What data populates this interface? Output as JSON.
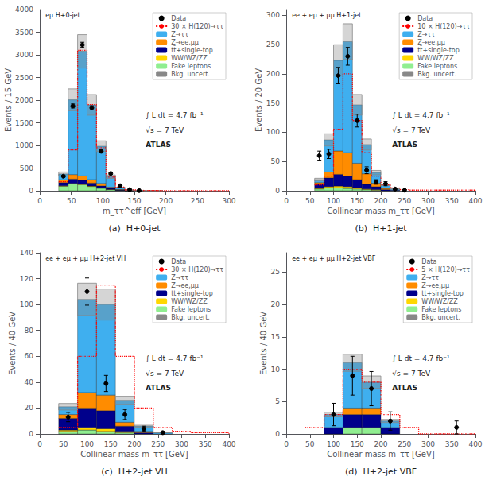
{
  "chart_data": [
    {
      "type": "bar",
      "stacked": true,
      "grid": false,
      "legend": "upper right",
      "title": "(a)  H+0-jet",
      "panel_label": "eμ H+0-jet",
      "annotations": [
        "∫ L dt = 4.7 fb⁻¹",
        "√s = 7 TeV",
        "ATLAS"
      ],
      "x_label": "m_ττ^eff [GeV]",
      "y_label": "Events / 15 GeV",
      "xlim": [
        0,
        300
      ],
      "ylim": [
        0,
        4000
      ],
      "xticks": [
        0,
        50,
        100,
        150,
        200,
        250,
        300
      ],
      "yticks": [
        0,
        500,
        1000,
        1500,
        2000,
        2500,
        3000,
        3500,
        4000
      ],
      "bins": [
        30,
        45,
        60,
        75,
        90,
        105,
        120,
        135,
        150,
        165,
        195,
        300
      ],
      "series": [
        {
          "name": "Data",
          "type": "errorbar",
          "color": "#000000",
          "marker": "circle",
          "x": [
            37.5,
            52.5,
            67.5,
            82.5,
            97.5,
            112.5,
            127.5,
            142.5,
            157.5
          ],
          "values": [
            320,
            1870,
            3220,
            1830,
            870,
            380,
            110,
            25,
            5
          ],
          "errors": [
            17.8885,
            43.2435,
            56.745,
            42.7785,
            29.4958,
            19.4936,
            10.4881,
            5,
            2.2361
          ]
        },
        {
          "name": "30 × H(120)→ττ",
          "type": "step",
          "color": "#FF0000",
          "line_style": "dotted",
          "values": [
            200,
            900,
            3100,
            1900,
            950,
            300,
            80,
            20,
            8,
            3,
            1
          ]
        },
        {
          "name": "Z→ττ",
          "type": "bar",
          "color": "#3FAFEF",
          "values": [
            130,
            1650,
            2750,
            1650,
            820,
            230,
            40,
            8,
            2,
            1,
            0
          ]
        },
        {
          "name": "Z→ee,μμ",
          "type": "bar",
          "color": "#FF8C00",
          "values": [
            60,
            100,
            95,
            75,
            55,
            25,
            8,
            2,
            0,
            0,
            0
          ]
        },
        {
          "name": "tt̄+single-top",
          "type": "bar",
          "color": "#00008B",
          "values": [
            70,
            95,
            85,
            65,
            45,
            25,
            12,
            4,
            1,
            0,
            0
          ]
        },
        {
          "name": "WW/WZ/ZZ",
          "type": "bar",
          "color": "#FFD700",
          "values": [
            10,
            12,
            12,
            10,
            8,
            5,
            2,
            1,
            0,
            0,
            0
          ]
        },
        {
          "name": "Fake leptons",
          "type": "bar",
          "color": "#90EE90",
          "values": [
            100,
            150,
            135,
            95,
            55,
            25,
            8,
            2,
            0,
            0,
            0
          ]
        },
        {
          "name": "Bkg. uncert.",
          "type": "band",
          "color": "#888888",
          "low": [
            325.6,
            1766.16,
            2707.76,
            1667.6,
            865.04,
            272.8,
            61.6,
            14.96,
            2.64,
            0.88,
            null
          ],
          "high": [
            414.4,
            2247.84,
            3446.24,
            2122.4,
            1100.96,
            347.2,
            78.4,
            19.04,
            3.36,
            1.12,
            null
          ]
        }
      ]
    },
    {
      "type": "bar",
      "stacked": true,
      "grid": false,
      "legend": "upper right",
      "title": "(b)  H+1-jet",
      "panel_label": "ee + eμ + μμ H+1-jet",
      "annotations": [
        "∫ L dt = 4.7 fb⁻¹",
        "√s = 7 TeV",
        "ATLAS"
      ],
      "x_label": "Collinear mass m_ττ [GeV]",
      "y_label": "Events / 20 GeV",
      "xlim": [
        0,
        400
      ],
      "ylim": [
        0,
        310
      ],
      "xticks": [
        0,
        50,
        100,
        150,
        200,
        250,
        300,
        350,
        400
      ],
      "yticks": [
        0,
        50,
        100,
        150,
        200,
        250,
        300
      ],
      "bins": [
        60,
        80,
        100,
        120,
        140,
        160,
        180,
        200,
        220,
        240,
        260,
        400
      ],
      "series": [
        {
          "name": "Data",
          "type": "errorbar",
          "color": "#000000",
          "marker": "circle",
          "x": [
            70,
            90,
            110,
            130,
            150,
            170,
            190,
            210,
            230,
            250
          ],
          "values": [
            60,
            63,
            197,
            230,
            120,
            35,
            15,
            12,
            3,
            1
          ],
          "errors": [
            7.746,
            7.9373,
            14.0357,
            15.1658,
            10.9545,
            5.9161,
            3.873,
            3.4641,
            1.7321,
            1
          ]
        },
        {
          "name": "10 × H(120)→ττ",
          "type": "step",
          "color": "#FF0000",
          "line_style": "dotted",
          "values": [
            10,
            25,
            105,
            200,
            120,
            65,
            25,
            10,
            5,
            2,
            1
          ]
        },
        {
          "name": "Z→ττ",
          "type": "bar",
          "color": "#3FAFEF",
          "values": [
            5,
            55,
            155,
            190,
            100,
            50,
            18,
            6,
            2,
            0,
            0
          ]
        },
        {
          "name": "Z→ee,μμ",
          "type": "bar",
          "color": "#FF8C00",
          "values": [
            2,
            10,
            40,
            40,
            28,
            18,
            6,
            2,
            0,
            0,
            0
          ]
        },
        {
          "name": "tt̄+single-top",
          "type": "bar",
          "color": "#00008B",
          "values": [
            8,
            15,
            20,
            18,
            14,
            8,
            5,
            2,
            1,
            0,
            0
          ]
        },
        {
          "name": "WW/WZ/ZZ",
          "type": "bar",
          "color": "#FFD700",
          "values": [
            1,
            2,
            3,
            3,
            2,
            1,
            1,
            0,
            0,
            0,
            0
          ]
        },
        {
          "name": "Fake leptons",
          "type": "bar",
          "color": "#90EE90",
          "values": [
            3,
            5,
            5,
            4,
            3,
            2,
            1,
            0,
            0,
            0,
            0
          ]
        },
        {
          "name": "Bkg. uncert.",
          "type": "band",
          "color": "#888888",
          "low": [
            16.72,
            76.56,
            196.24,
            224.4,
            129.36,
            69.52,
            27.28,
            8.8,
            2.64,
            null,
            null
          ],
          "high": [
            21.28,
            97.44,
            249.76,
            285.6,
            164.64,
            88.48,
            34.72,
            11.2,
            3.36,
            null,
            null
          ]
        }
      ]
    },
    {
      "type": "bar",
      "stacked": true,
      "grid": false,
      "legend": "upper right",
      "title": "(c)  H+2-jet VH",
      "panel_label": "ee + eμ + μμ H+2-jet VH",
      "annotations": [
        "∫ L dt = 4.7 fb⁻¹",
        "√s = 7 TeV",
        "ATLAS"
      ],
      "x_label": "Collinear mass m_ττ [GeV]",
      "y_label": "Events / 40 GeV",
      "xlim": [
        0,
        400
      ],
      "ylim": [
        0,
        140
      ],
      "xticks": [
        0,
        50,
        100,
        150,
        200,
        250,
        300,
        350,
        400
      ],
      "yticks": [
        0,
        20,
        40,
        60,
        80,
        100,
        120,
        140
      ],
      "bins": [
        40,
        80,
        120,
        160,
        200,
        240,
        280,
        320,
        400
      ],
      "series": [
        {
          "name": "Data",
          "type": "errorbar",
          "color": "#000000",
          "marker": "circle",
          "x": [
            60,
            100,
            140,
            180,
            220,
            260
          ],
          "values": [
            13,
            110,
            39,
            15,
            4,
            1
          ],
          "errors": [
            3.6056,
            10.4881,
            6.245,
            3.873,
            2,
            1
          ]
        },
        {
          "name": "30 × H(120)→ττ",
          "type": "step",
          "color": "#FF0000",
          "line_style": "dotted",
          "values": [
            5,
            60,
            115,
            60,
            20,
            5,
            2,
            1
          ]
        },
        {
          "name": "Z→ττ",
          "type": "bar",
          "color": "#3FAFEF",
          "values": [
            6,
            72,
            70,
            17,
            4,
            1,
            0,
            0
          ]
        },
        {
          "name": "Z→ee,μμ",
          "type": "bar",
          "color": "#FF8C00",
          "values": [
            3,
            12,
            12,
            3,
            1,
            0,
            0,
            0
          ]
        },
        {
          "name": "tt̄+single-top",
          "type": "bar",
          "color": "#00008B",
          "values": [
            9,
            15,
            14,
            4,
            1,
            0,
            0,
            0
          ]
        },
        {
          "name": "WW/WZ/ZZ",
          "type": "bar",
          "color": "#FFD700",
          "values": [
            1,
            2,
            2,
            1,
            0,
            0,
            0,
            0
          ]
        },
        {
          "name": "Fake leptons",
          "type": "bar",
          "color": "#90EE90",
          "values": [
            2,
            3,
            2,
            1,
            0,
            0,
            0,
            0
          ]
        },
        {
          "name": "Bkg. uncert.",
          "type": "band",
          "color": "#888888",
          "low": [
            18.48,
            91.52,
            88,
            22.88,
            5.28,
            0.88,
            null,
            null
          ],
          "high": [
            23.52,
            116.48,
            112,
            29.12,
            6.72,
            1.12,
            null,
            null
          ]
        }
      ]
    },
    {
      "type": "bar",
      "stacked": true,
      "grid": false,
      "legend": "upper right",
      "title": "(d)  H+2-jet VBF",
      "panel_label": "ee + eμ + μμ H+2-jet VBF",
      "annotations": [
        "∫ L dt = 4.7 fb⁻¹",
        "√s = 7 TeV",
        "ATLAS"
      ],
      "x_label": "Collinear mass m_ττ [GeV]",
      "y_label": "Events / 40 GeV",
      "xlim": [
        0,
        400
      ],
      "ylim": [
        0,
        28
      ],
      "xticks": [
        0,
        50,
        100,
        150,
        200,
        250,
        300,
        350,
        400
      ],
      "yticks": [
        0,
        5,
        10,
        15,
        20,
        25
      ],
      "bins": [
        40,
        80,
        120,
        160,
        200,
        240,
        280,
        320,
        400
      ],
      "series": [
        {
          "name": "Data",
          "type": "errorbar",
          "color": "#000000",
          "marker": "circle",
          "x": [
            100,
            140,
            180,
            220,
            360
          ],
          "values": [
            3,
            9,
            7,
            2,
            1
          ],
          "errors": [
            1.7321,
            3,
            2.6458,
            1.4142,
            1
          ]
        },
        {
          "name": "5 × H(120)→ττ",
          "type": "step",
          "color": "#FF0000",
          "line_style": "dotted",
          "values": [
            1,
            3,
            10,
            8,
            3,
            1,
            0,
            0
          ]
        },
        {
          "name": "Z→ττ",
          "type": "bar",
          "color": "#3FAFEF",
          "values": [
            0,
            2,
            7,
            4,
            1,
            0,
            0,
            0
          ]
        },
        {
          "name": "Z→ee,μμ",
          "type": "bar",
          "color": "#FF8C00",
          "values": [
            0,
            0,
            1,
            1,
            0,
            0,
            0,
            0
          ]
        },
        {
          "name": "tt̄+single-top",
          "type": "bar",
          "color": "#00008B",
          "values": [
            0,
            1,
            2,
            2,
            1,
            0,
            0,
            0
          ]
        },
        {
          "name": "WW/WZ/ZZ",
          "type": "bar",
          "color": "#FFD700",
          "values": [
            0,
            0,
            0,
            0,
            0,
            0,
            0,
            0
          ]
        },
        {
          "name": "Fake leptons",
          "type": "bar",
          "color": "#90EE90",
          "values": [
            0,
            0,
            1,
            1,
            0,
            0,
            0,
            0
          ]
        },
        {
          "name": "Bkg. uncert.",
          "type": "band",
          "color": "#888888",
          "low": [
            null,
            2.64,
            9.68,
            7.04,
            1.76,
            null,
            null,
            null
          ],
          "high": [
            null,
            3.36,
            12.32,
            8.96,
            2.24,
            null,
            null,
            null
          ]
        }
      ]
    }
  ]
}
